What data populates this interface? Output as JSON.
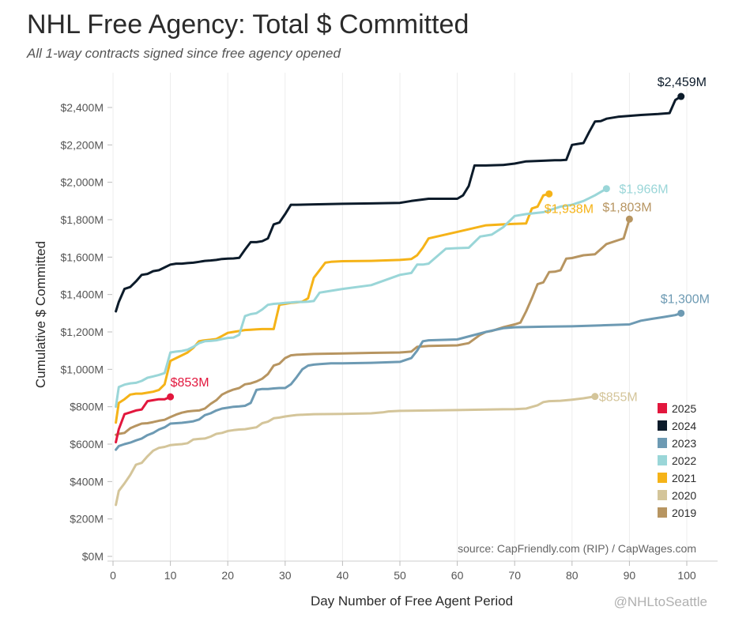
{
  "header": {
    "title": "NHL Free Agency: Total $ Committed",
    "subtitle": "All 1-way contracts signed since free agency opened"
  },
  "footer": {
    "source": "source: CapFriendly.com (RIP) / CapWages.com",
    "credit": "@NHLtoSeattle"
  },
  "chart_data": {
    "type": "line",
    "title": "NHL Free Agency: Total $ Committed",
    "subtitle": "All 1-way contracts signed since free agency opened",
    "xlabel": "Day Number of Free Agent Period",
    "ylabel": "Cumulative $ Committed",
    "xlim": [
      -1,
      105
    ],
    "ylim": [
      -20,
      2560
    ],
    "x_ticks": [
      0,
      10,
      20,
      30,
      40,
      50,
      60,
      70,
      80,
      90,
      100
    ],
    "x_tick_labels": [
      "0",
      "10",
      "20",
      "30",
      "40",
      "50",
      "60",
      "70",
      "80",
      "90",
      "100"
    ],
    "y_ticks": [
      0,
      200,
      400,
      600,
      800,
      1000,
      1200,
      1400,
      1600,
      1800,
      2000,
      2200,
      2400
    ],
    "y_tick_labels": [
      "$0M",
      "$200M",
      "$400M",
      "$600M",
      "$800M",
      "$1,000M",
      "$1,200M",
      "$1,400M",
      "$1,600M",
      "$1,800M",
      "$2,000M",
      "$2,200M",
      "$2,400M"
    ],
    "legend_position": "bottom-right",
    "series": [
      {
        "name": "2025",
        "color": "#e2173d",
        "end_label": "$853M",
        "x": [
          0.5,
          1,
          2,
          3,
          4,
          5,
          6,
          7,
          8,
          9,
          10
        ],
        "y": [
          610,
          680,
          760,
          770,
          780,
          785,
          830,
          835,
          840,
          840,
          853
        ]
      },
      {
        "name": "2024",
        "color": "#0c1b2a",
        "end_label": "$2,459M",
        "x": [
          0.5,
          1,
          2,
          3,
          4,
          5,
          6,
          7,
          8,
          9,
          10,
          11,
          12,
          13,
          14,
          15,
          16,
          17,
          18,
          19,
          20,
          21,
          22,
          23,
          24,
          25,
          26,
          27,
          28,
          29,
          30,
          31,
          32,
          35,
          40,
          45,
          50,
          52,
          55,
          60,
          61,
          62,
          63,
          65,
          68,
          70,
          72,
          75,
          77,
          78,
          79,
          80,
          81,
          82,
          83,
          84,
          85,
          86,
          88,
          90,
          92,
          95,
          97,
          98,
          99
        ],
        "y": [
          1310,
          1360,
          1430,
          1440,
          1470,
          1505,
          1510,
          1525,
          1530,
          1545,
          1560,
          1565,
          1565,
          1568,
          1570,
          1575,
          1580,
          1582,
          1585,
          1590,
          1592,
          1593,
          1596,
          1640,
          1680,
          1680,
          1685,
          1700,
          1775,
          1785,
          1830,
          1880,
          1880,
          1882,
          1885,
          1887,
          1890,
          1900,
          1912,
          1912,
          1930,
          1980,
          2090,
          2090,
          2093,
          2100,
          2112,
          2115,
          2118,
          2118,
          2120,
          2200,
          2205,
          2210,
          2270,
          2325,
          2327,
          2340,
          2350,
          2355,
          2360,
          2365,
          2370,
          2440,
          2459
        ]
      },
      {
        "name": "2023",
        "color": "#6d9ab3",
        "end_label": "$1,300M",
        "x": [
          0.5,
          1,
          2,
          3,
          4,
          5,
          6,
          7,
          8,
          9,
          10,
          11,
          12,
          13,
          14,
          15,
          16,
          17,
          18,
          19,
          20,
          21,
          22,
          23,
          24,
          25,
          26,
          27,
          28,
          29,
          30,
          31,
          32,
          33,
          34,
          35,
          36,
          37,
          38,
          40,
          45,
          50,
          52,
          53,
          54,
          55,
          60,
          65,
          68,
          70,
          75,
          80,
          85,
          90,
          92,
          94,
          96,
          98,
          99
        ],
        "y": [
          570,
          590,
          600,
          608,
          620,
          630,
          648,
          660,
          678,
          690,
          710,
          712,
          714,
          718,
          722,
          732,
          755,
          765,
          780,
          790,
          795,
          800,
          802,
          805,
          820,
          890,
          895,
          895,
          898,
          900,
          900,
          920,
          958,
          1000,
          1020,
          1025,
          1028,
          1030,
          1032,
          1032,
          1035,
          1040,
          1060,
          1100,
          1150,
          1155,
          1160,
          1200,
          1220,
          1225,
          1228,
          1230,
          1235,
          1240,
          1260,
          1270,
          1280,
          1290,
          1300
        ]
      },
      {
        "name": "2022",
        "color": "#9ad6d8",
        "end_label": "$1,966M",
        "x": [
          0.5,
          1,
          2,
          3,
          4,
          5,
          6,
          7,
          8,
          9,
          10,
          11,
          12,
          13,
          14,
          15,
          16,
          17,
          18,
          19,
          20,
          21,
          22,
          23,
          24,
          25,
          26,
          27,
          28,
          29,
          30,
          31,
          32,
          33,
          34,
          35,
          36,
          37,
          40,
          45,
          50,
          52,
          53,
          54,
          55,
          58,
          60,
          62,
          64,
          65,
          66,
          68,
          70,
          72,
          75,
          78,
          80,
          82,
          84,
          86
        ],
        "y": [
          800,
          905,
          918,
          925,
          928,
          938,
          955,
          962,
          970,
          980,
          1090,
          1095,
          1098,
          1105,
          1120,
          1140,
          1150,
          1152,
          1155,
          1162,
          1168,
          1170,
          1185,
          1285,
          1295,
          1300,
          1320,
          1345,
          1350,
          1352,
          1355,
          1357,
          1360,
          1360,
          1362,
          1365,
          1410,
          1415,
          1430,
          1450,
          1505,
          1515,
          1560,
          1560,
          1565,
          1645,
          1648,
          1650,
          1710,
          1715,
          1720,
          1760,
          1820,
          1830,
          1840,
          1870,
          1880,
          1900,
          1930,
          1966
        ]
      },
      {
        "name": "2021",
        "color": "#f5b318",
        "end_label": "$1,938M",
        "x": [
          0.5,
          1,
          2,
          3,
          4,
          5,
          6,
          7,
          8,
          9,
          10,
          11,
          12,
          13,
          14,
          15,
          16,
          17,
          18,
          19,
          20,
          21,
          22,
          23,
          24,
          25,
          26,
          27,
          28,
          29,
          30,
          31,
          32,
          33,
          34,
          35,
          36,
          37,
          38,
          40,
          45,
          50,
          52,
          53,
          54,
          55,
          60,
          65,
          68,
          70,
          72,
          73,
          74,
          75,
          76
        ],
        "y": [
          715,
          820,
          840,
          865,
          870,
          870,
          875,
          880,
          890,
          920,
          1045,
          1060,
          1075,
          1090,
          1115,
          1150,
          1155,
          1158,
          1162,
          1178,
          1195,
          1200,
          1205,
          1210,
          1212,
          1214,
          1215,
          1215,
          1215,
          1345,
          1350,
          1355,
          1358,
          1362,
          1380,
          1490,
          1530,
          1570,
          1575,
          1578,
          1580,
          1585,
          1590,
          1610,
          1650,
          1700,
          1735,
          1770,
          1775,
          1778,
          1780,
          1860,
          1870,
          1930,
          1938
        ]
      },
      {
        "name": "2020",
        "color": "#d4c59a",
        "end_label": "$855M",
        "x": [
          0.5,
          1,
          2,
          3,
          4,
          5,
          6,
          7,
          8,
          9,
          10,
          11,
          12,
          13,
          14,
          15,
          16,
          17,
          18,
          19,
          20,
          21,
          22,
          23,
          24,
          25,
          26,
          27,
          28,
          29,
          30,
          31,
          32,
          35,
          40,
          45,
          47,
          48,
          50,
          55,
          60,
          65,
          70,
          72,
          74,
          75,
          76,
          78,
          80,
          82,
          84
        ],
        "y": [
          275,
          350,
          390,
          435,
          490,
          500,
          535,
          565,
          580,
          585,
          595,
          598,
          600,
          605,
          625,
          628,
          630,
          640,
          655,
          660,
          670,
          675,
          678,
          680,
          685,
          690,
          712,
          720,
          738,
          742,
          748,
          752,
          756,
          760,
          762,
          765,
          770,
          775,
          778,
          780,
          782,
          785,
          787,
          790,
          808,
          825,
          830,
          832,
          838,
          845,
          855
        ]
      },
      {
        "name": "2019",
        "color": "#b79561",
        "end_label": "$1,803M",
        "x": [
          0.5,
          1,
          2,
          3,
          4,
          5,
          6,
          7,
          8,
          9,
          10,
          11,
          12,
          13,
          14,
          15,
          16,
          17,
          18,
          19,
          20,
          21,
          22,
          23,
          24,
          25,
          26,
          27,
          28,
          29,
          30,
          31,
          32,
          35,
          40,
          45,
          50,
          52,
          53,
          55,
          60,
          62,
          64,
          65,
          66,
          67,
          68,
          70,
          71,
          72,
          73,
          74,
          75,
          76,
          77,
          78,
          79,
          80,
          82,
          84,
          86,
          88,
          89,
          90
        ],
        "y": [
          650,
          655,
          660,
          685,
          698,
          710,
          712,
          718,
          725,
          730,
          745,
          758,
          768,
          775,
          778,
          780,
          790,
          815,
          835,
          865,
          880,
          892,
          900,
          920,
          925,
          935,
          950,
          975,
          1020,
          1030,
          1060,
          1075,
          1078,
          1082,
          1085,
          1088,
          1090,
          1095,
          1120,
          1125,
          1128,
          1140,
          1185,
          1200,
          1205,
          1215,
          1225,
          1240,
          1250,
          1310,
          1380,
          1455,
          1465,
          1520,
          1522,
          1530,
          1592,
          1595,
          1610,
          1615,
          1670,
          1690,
          1700,
          1803
        ]
      }
    ],
    "annotations": [
      "$853M",
      "$2,459M",
      "$1,300M",
      "$1,966M",
      "$1,938M",
      "$855M",
      "$1,803M"
    ]
  }
}
